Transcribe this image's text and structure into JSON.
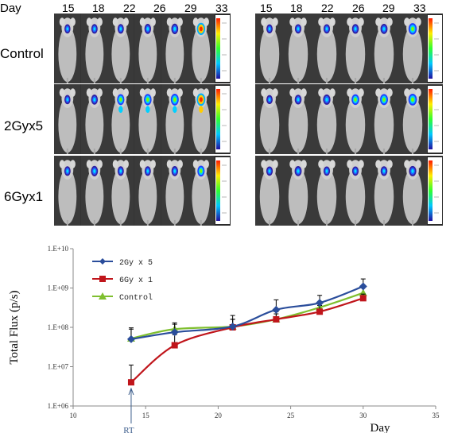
{
  "header": {
    "day_label": "Day",
    "left_days": [
      "15",
      "18",
      "22",
      "26",
      "29",
      "33"
    ],
    "right_days": [
      "15",
      "18",
      "22",
      "26",
      "29",
      "33"
    ]
  },
  "rows": [
    "Control",
    "2Gyx5",
    "6Gyx1"
  ],
  "chart_data": {
    "type": "line",
    "xlabel": "Day",
    "ylabel": "Total Flux (p/s)",
    "xlim": [
      10,
      35
    ],
    "xticks": [
      "10",
      "15",
      "20",
      "25",
      "30",
      "35"
    ],
    "ylim_log10": [
      6,
      10
    ],
    "yticks": [
      "1.E+06",
      "1.E+07",
      "1.E+08",
      "1.E+09",
      "1.E+10"
    ],
    "annotation": "RT",
    "annotation_x": 14,
    "legend_position": "top-left",
    "series": [
      {
        "name": "2Gy x 5",
        "color": "#2a4d9b",
        "marker": "diamond",
        "x": [
          14,
          17,
          21,
          24,
          27,
          30
        ],
        "y": [
          50000000.0,
          75000000.0,
          105000000.0,
          280000000.0,
          420000000.0,
          1100000000.0
        ],
        "err_up": [
          97000000.0,
          120000000.0,
          200000000.0,
          500000000.0,
          650000000.0,
          1700000000.0
        ]
      },
      {
        "name": "6Gy x 1",
        "color": "#c0151b",
        "marker": "square",
        "x": [
          14,
          17,
          21,
          24,
          27,
          30
        ],
        "y": [
          4000000.0,
          35000000.0,
          100000000.0,
          160000000.0,
          250000000.0,
          550000000.0
        ],
        "err_up": [
          11000000.0,
          65000000.0,
          160000000.0,
          220000000.0,
          360000000.0,
          700000000.0
        ]
      },
      {
        "name": "Control",
        "color": "#7fbf2f",
        "marker": "triangle",
        "x": [
          14,
          17,
          21,
          24,
          27,
          30
        ],
        "y": [
          52000000.0,
          90000000.0,
          105000000.0,
          160000000.0,
          320000000.0,
          750000000.0
        ],
        "err_up": [
          90000000.0,
          130000000.0,
          160000000.0,
          250000000.0,
          450000000.0,
          1050000000.0
        ]
      }
    ]
  },
  "colors": {
    "panel_bg": "#2b2b2b",
    "axis": "#8a8a8a"
  }
}
